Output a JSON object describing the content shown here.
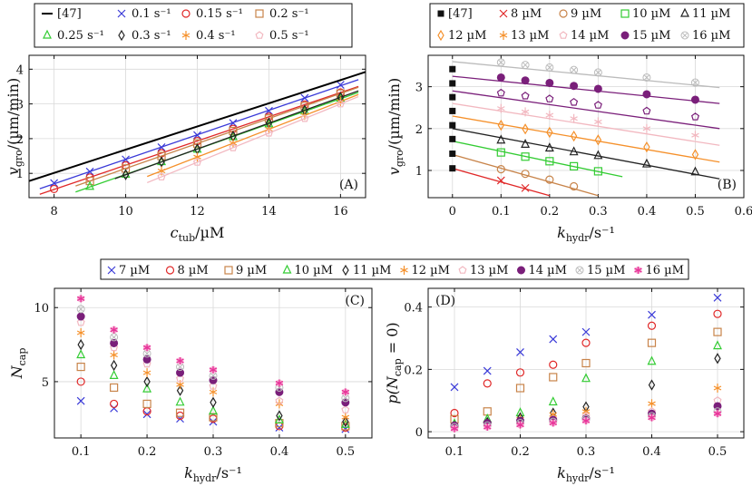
{
  "colors": {
    "0.1": "#3a3ad8",
    "0.15": "#e02828",
    "0.2": "#c8844a",
    "0.25": "#33cc33",
    "0.3": "#222222",
    "0.4": "#f5902a",
    "0.5": "#f2b8c0",
    "c7": "#3a3ad8",
    "c8": "#e02828",
    "c9": "#c8844a",
    "c10": "#33cc33",
    "c11": "#222222",
    "c12": "#f5902a",
    "c13": "#f2b8c0",
    "c14": "#7a1f7a",
    "c15": "#bbbbbb",
    "c16": "#e8359a"
  },
  "chart_data": [
    {
      "id": "A",
      "panel_label": "(A)",
      "type": "line+scatter",
      "xlabel": "c_tub/µM",
      "ylabel": "v_gro/(µm/min)",
      "xlim": [
        7.3,
        16.7
      ],
      "ylim": [
        0.3,
        4.4
      ],
      "xticks": [
        "8",
        "10",
        "12",
        "14",
        "16"
      ],
      "yticks": [
        "1",
        "2",
        "3",
        "4"
      ],
      "legend": [
        "[47]",
        "0.1 s⁻¹",
        "0.15 s⁻¹",
        "0.2 s⁻¹",
        "0.25 s⁻¹",
        "0.3 s⁻¹",
        "0.4 s⁻¹",
        "0.5 s⁻¹"
      ],
      "reference_line": {
        "name": "[47]",
        "x": [
          7.3,
          16.7
        ],
        "y": [
          0.78,
          3.92
        ]
      },
      "series": [
        {
          "k": "0.1",
          "marker": "x",
          "x": [
            8,
            9,
            10,
            11,
            12,
            13,
            14,
            15,
            16
          ],
          "y": [
            0.72,
            1.05,
            1.4,
            1.75,
            2.1,
            2.45,
            2.8,
            3.17,
            3.55
          ],
          "line_x": [
            7.6,
            16.5
          ]
        },
        {
          "k": "0.15",
          "marker": "circle",
          "x": [
            8,
            9,
            10,
            11,
            12,
            13,
            14,
            15,
            16
          ],
          "y": [
            0.55,
            0.88,
            1.23,
            1.58,
            1.93,
            2.28,
            2.63,
            2.98,
            3.33
          ],
          "line_x": [
            7.6,
            16.5
          ]
        },
        {
          "k": "0.2",
          "marker": "square",
          "x": [
            9,
            10,
            11,
            12,
            13,
            14,
            15,
            16
          ],
          "y": [
            0.78,
            1.14,
            1.5,
            1.86,
            2.22,
            2.58,
            2.94,
            3.3
          ],
          "line_x": [
            8.6,
            16.5
          ]
        },
        {
          "k": "0.25",
          "marker": "triangle",
          "x": [
            9,
            10,
            11,
            12,
            13,
            14,
            15,
            16
          ],
          "y": [
            0.62,
            0.97,
            1.33,
            1.69,
            2.05,
            2.42,
            2.79,
            3.16
          ],
          "line_x": [
            8.6,
            16.5
          ]
        },
        {
          "k": "0.3",
          "marker": "diamond",
          "x": [
            10,
            11,
            12,
            13,
            14,
            15,
            16
          ],
          "y": [
            0.96,
            1.33,
            1.7,
            2.07,
            2.45,
            2.82,
            3.19
          ],
          "line_x": [
            9.7,
            16.5
          ]
        },
        {
          "k": "0.4",
          "marker": "star",
          "x": [
            11,
            12,
            13,
            14,
            15,
            16
          ],
          "y": [
            1.07,
            1.47,
            1.87,
            2.27,
            2.67,
            3.07
          ],
          "line_x": [
            10.6,
            16.5
          ]
        },
        {
          "k": "0.5",
          "marker": "pentagon",
          "x": [
            11,
            12,
            13,
            14,
            15,
            16
          ],
          "y": [
            0.9,
            1.32,
            1.74,
            2.16,
            2.58,
            3.0
          ],
          "line_x": [
            10.6,
            16.5
          ]
        }
      ]
    },
    {
      "id": "B",
      "panel_label": "(B)",
      "type": "line+scatter",
      "xlabel": "k_hydr/s⁻¹",
      "ylabel": "v_gro/(µm/min)",
      "xlim": [
        -0.05,
        0.6
      ],
      "ylim": [
        0.35,
        3.75
      ],
      "xticks": [
        "0",
        "0.1",
        "0.2",
        "0.3",
        "0.4",
        "0.5",
        "0.6"
      ],
      "yticks": [
        "1",
        "2",
        "3"
      ],
      "legend": [
        "[47]",
        "8 µM",
        "9 µM",
        "10 µM",
        "11 µM",
        "12 µM",
        "13 µM",
        "14 µM",
        "15 µM",
        "16 µM"
      ],
      "reference_points": {
        "name": "[47]",
        "x": 0,
        "y": [
          1.05,
          1.4,
          1.75,
          2.08,
          2.42,
          2.75,
          3.08,
          3.42
        ]
      },
      "series": [
        {
          "c": "8",
          "color_key": "c8",
          "marker": "x",
          "x": [
            0.1,
            0.15
          ],
          "y": [
            0.76,
            0.58
          ],
          "line": [
            [
              0,
              1.05
            ],
            [
              0.2,
              0.4
            ]
          ]
        },
        {
          "c": "9",
          "color_key": "c9",
          "marker": "circle",
          "x": [
            0.1,
            0.15,
            0.2,
            0.25
          ],
          "y": [
            1.03,
            0.92,
            0.78,
            0.62
          ],
          "line": [
            [
              0,
              1.38
            ],
            [
              0.3,
              0.4
            ]
          ]
        },
        {
          "c": "10",
          "color_key": "c10",
          "marker": "square",
          "x": [
            0.1,
            0.15,
            0.2,
            0.25,
            0.3
          ],
          "y": [
            1.43,
            1.33,
            1.22,
            1.1,
            0.98
          ],
          "line": [
            [
              0,
              1.7
            ],
            [
              0.35,
              0.85
            ]
          ]
        },
        {
          "c": "11",
          "color_key": "c11",
          "marker": "triangle",
          "x": [
            0.1,
            0.15,
            0.2,
            0.25,
            0.3,
            0.4,
            0.5
          ],
          "y": [
            1.72,
            1.62,
            1.53,
            1.44,
            1.35,
            1.15,
            0.96
          ],
          "line": [
            [
              0,
              2.0
            ],
            [
              0.55,
              0.8
            ]
          ]
        },
        {
          "c": "12",
          "color_key": "c12",
          "marker": "diamond",
          "x": [
            0.1,
            0.15,
            0.2,
            0.25,
            0.3,
            0.4,
            0.5
          ],
          "y": [
            2.08,
            1.99,
            1.91,
            1.82,
            1.73,
            1.56,
            1.38
          ],
          "line": [
            [
              0,
              2.3
            ],
            [
              0.55,
              1.2
            ]
          ]
        },
        {
          "c": "13",
          "color_key": "c13",
          "marker": "star",
          "x": [
            0.1,
            0.15,
            0.2,
            0.25,
            0.3,
            0.4,
            0.5
          ],
          "y": [
            2.48,
            2.4,
            2.32,
            2.24,
            2.16,
            2.0,
            1.84
          ],
          "line": [
            [
              0,
              2.6
            ],
            [
              0.55,
              1.6
            ]
          ]
        },
        {
          "c": "14",
          "color_key": "c14",
          "marker": "pentagon",
          "x": [
            0.1,
            0.15,
            0.2,
            0.25,
            0.3,
            0.4,
            0.5
          ],
          "y": [
            2.85,
            2.78,
            2.71,
            2.63,
            2.56,
            2.42,
            2.28
          ],
          "line": [
            [
              0,
              2.9
            ],
            [
              0.55,
              2.0
            ]
          ]
        },
        {
          "c": "15",
          "color_key": "c14",
          "marker": "filled-circle",
          "x": [
            0.1,
            0.15,
            0.2,
            0.25,
            0.3,
            0.4,
            0.5
          ],
          "y": [
            3.22,
            3.15,
            3.09,
            3.02,
            2.95,
            2.82,
            2.69
          ],
          "line": [
            [
              0,
              3.25
            ],
            [
              0.55,
              2.6
            ]
          ]
        },
        {
          "c": "16",
          "color_key": "c15",
          "marker": "otimes",
          "x": [
            0.1,
            0.15,
            0.2,
            0.25,
            0.3,
            0.4,
            0.5
          ],
          "y": [
            3.58,
            3.52,
            3.46,
            3.4,
            3.34,
            3.22,
            3.1
          ],
          "line": [
            [
              0,
              3.6
            ],
            [
              0.55,
              2.98
            ]
          ]
        }
      ]
    },
    {
      "id": "C",
      "panel_label": "(C)",
      "type": "scatter",
      "xlabel": "k_hydr/s⁻¹",
      "ylabel": "N_cap",
      "xlim": [
        0.06,
        0.54
      ],
      "ylim": [
        1.2,
        11.3
      ],
      "xticks": [
        "0.1",
        "0.2",
        "0.3",
        "0.4",
        "0.5"
      ],
      "yticks": [
        "5",
        "10"
      ],
      "legend": [
        "7 µM",
        "8 µM",
        "9 µM",
        "10 µM",
        "11 µM",
        "12 µM",
        "13 µM",
        "14 µM",
        "15 µM",
        "16 µM"
      ],
      "x": [
        0.1,
        0.15,
        0.2,
        0.25,
        0.3,
        0.4,
        0.5
      ],
      "series": [
        {
          "c": "7",
          "color_key": "c7",
          "marker": "x",
          "values": [
            3.7,
            3.2,
            2.8,
            2.5,
            2.3,
            1.9,
            1.8
          ]
        },
        {
          "c": "8",
          "color_key": "c8",
          "marker": "circle",
          "values": [
            5.0,
            3.5,
            3.0,
            2.7,
            2.5,
            2.0,
            1.9
          ]
        },
        {
          "c": "9",
          "color_key": "c9",
          "marker": "square",
          "values": [
            6.0,
            4.6,
            3.5,
            2.9,
            2.6,
            2.2,
            2.0
          ]
        },
        {
          "c": "10",
          "color_key": "c10",
          "marker": "triangle",
          "values": [
            6.8,
            5.4,
            4.5,
            3.6,
            3.0,
            2.4,
            2.1
          ]
        },
        {
          "c": "11",
          "color_key": "c11",
          "marker": "diamond",
          "values": [
            7.5,
            6.1,
            5.0,
            4.4,
            3.6,
            2.7,
            2.3
          ]
        },
        {
          "c": "12",
          "color_key": "c12",
          "marker": "star",
          "values": [
            8.3,
            6.8,
            5.6,
            4.8,
            4.3,
            3.5,
            2.6
          ]
        },
        {
          "c": "13",
          "color_key": "c13",
          "marker": "pentagon",
          "values": [
            9.0,
            7.3,
            6.2,
            5.2,
            4.7,
            3.7,
            3.1
          ]
        },
        {
          "c": "14",
          "color_key": "c14",
          "marker": "filled-circle",
          "values": [
            9.4,
            7.6,
            6.5,
            5.6,
            5.1,
            4.3,
            3.6
          ]
        },
        {
          "c": "15",
          "color_key": "c15",
          "marker": "otimes",
          "values": [
            9.9,
            8.0,
            6.9,
            6.0,
            5.4,
            4.6,
            3.9
          ]
        },
        {
          "c": "16",
          "color_key": "c16",
          "marker": "asterisk-circle",
          "values": [
            10.6,
            8.5,
            7.3,
            6.4,
            5.8,
            4.9,
            4.3
          ]
        }
      ]
    },
    {
      "id": "D",
      "panel_label": "(D)",
      "type": "scatter",
      "xlabel": "k_hydr/s⁻¹",
      "ylabel": "p(N_cap = 0)",
      "xlim": [
        0.06,
        0.54
      ],
      "ylim": [
        -0.02,
        0.46
      ],
      "xticks": [
        "0.1",
        "0.2",
        "0.3",
        "0.4",
        "0.5"
      ],
      "yticks": [
        "0",
        "0.2",
        "0.4"
      ],
      "x": [
        0.1,
        0.15,
        0.2,
        0.25,
        0.3,
        0.4,
        0.5
      ],
      "series": [
        {
          "c": "7",
          "color_key": "c7",
          "marker": "x",
          "values": [
            0.143,
            0.195,
            0.255,
            0.297,
            0.32,
            0.375,
            0.43
          ]
        },
        {
          "c": "8",
          "color_key": "c8",
          "marker": "circle",
          "values": [
            0.06,
            0.155,
            0.19,
            0.215,
            0.285,
            0.34,
            0.378
          ]
        },
        {
          "c": "9",
          "color_key": "c9",
          "marker": "square",
          "values": [
            0.04,
            0.065,
            0.14,
            0.175,
            0.22,
            0.285,
            0.32
          ]
        },
        {
          "c": "10",
          "color_key": "c10",
          "marker": "triangle",
          "values": [
            0.025,
            0.04,
            0.06,
            0.095,
            0.17,
            0.225,
            0.275
          ]
        },
        {
          "c": "11",
          "color_key": "c11",
          "marker": "diamond",
          "values": [
            0.018,
            0.03,
            0.045,
            0.06,
            0.08,
            0.15,
            0.235
          ]
        },
        {
          "c": "12",
          "color_key": "c12",
          "marker": "star",
          "values": [
            0.015,
            0.025,
            0.04,
            0.055,
            0.065,
            0.09,
            0.14
          ]
        },
        {
          "c": "13",
          "color_key": "c13",
          "marker": "pentagon",
          "values": [
            0.012,
            0.022,
            0.032,
            0.04,
            0.05,
            0.065,
            0.1
          ]
        },
        {
          "c": "14",
          "color_key": "c14",
          "marker": "filled-circle",
          "values": [
            0.02,
            0.028,
            0.035,
            0.038,
            0.042,
            0.058,
            0.082
          ]
        },
        {
          "c": "15",
          "color_key": "c15",
          "marker": "otimes",
          "values": [
            0.015,
            0.02,
            0.028,
            0.032,
            0.04,
            0.05,
            0.065
          ]
        },
        {
          "c": "16",
          "color_key": "c16",
          "marker": "asterisk-circle",
          "values": [
            0.01,
            0.015,
            0.022,
            0.028,
            0.035,
            0.045,
            0.058
          ]
        }
      ]
    }
  ]
}
